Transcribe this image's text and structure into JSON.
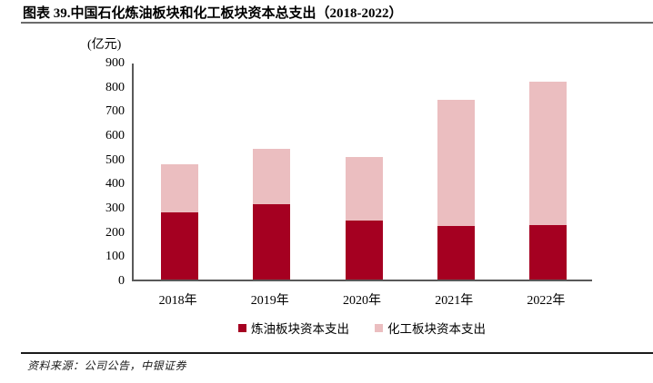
{
  "figure": {
    "title": "图表 39.中国石化炼油板块和化工板块资本总支出（2018-2022）",
    "unit_label": "(亿元)",
    "source_note": "资料来源：公司公告，中银证券"
  },
  "colors": {
    "refining_bar": "#A50021",
    "chemical_bar": "#EBBEC0",
    "axis": "#595959",
    "title_rule": "#6b6b6b",
    "bottom_rule": "#1a1a1a"
  },
  "chart_data": {
    "type": "bar",
    "stacked": true,
    "title": "图表 39.中国石化炼油板块和化工板块资本总支出（2018-2022）",
    "ylabel": "(亿元)",
    "xlabel": "",
    "categories": [
      "2018年",
      "2019年",
      "2020年",
      "2021年",
      "2022年"
    ],
    "series": [
      {
        "name": "炼油板块资本支出",
        "color": "#A50021",
        "values": [
          278,
          313,
          243,
          220,
          224
        ]
      },
      {
        "name": "化工板块资本支出",
        "color": "#EBBEC0",
        "values": [
          198,
          228,
          265,
          522,
          593
        ]
      }
    ],
    "stack_totals": [
      476,
      541,
      508,
      742,
      817
    ],
    "ylim": [
      0,
      900
    ],
    "ytick_step": 100,
    "ytick_labels": [
      "0",
      "100",
      "200",
      "300",
      "400",
      "500",
      "600",
      "700",
      "800",
      "900"
    ],
    "grid": false,
    "legend_position": "bottom"
  },
  "legend": {
    "items": [
      {
        "label": "炼油板块资本支出",
        "color": "#A50021"
      },
      {
        "label": "化工板块资本支出",
        "color": "#EBBEC0"
      }
    ]
  }
}
